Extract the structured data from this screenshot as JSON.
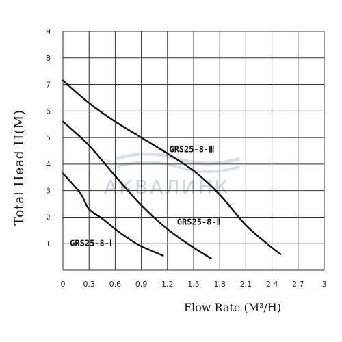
{
  "chart_data": {
    "type": "line",
    "ylabel": "Total Head H(M)",
    "xlabel": "Flow Rate (M³/H)",
    "xlim": [
      0,
      3
    ],
    "ylim": [
      0,
      9
    ],
    "xticks": [
      "0",
      "0.3",
      "0.6",
      "0.9",
      "1.2",
      "1.5",
      "1.8",
      "2.1",
      "2.4",
      "2.7",
      "3"
    ],
    "yticks": [
      "1",
      "2",
      "3",
      "4",
      "5",
      "6",
      "7",
      "8",
      "9"
    ],
    "grid": true,
    "watermark": "АКВАЛИНК",
    "series": [
      {
        "name": "GRS25-8-Ⅲ",
        "x": [
          0,
          0.3,
          0.6,
          0.9,
          1.2,
          1.5,
          1.8,
          2.1,
          2.4,
          2.5
        ],
        "y": [
          7.15,
          6.3,
          5.6,
          5.0,
          4.4,
          3.75,
          2.85,
          1.7,
          0.85,
          0.6
        ]
      },
      {
        "name": "GRS25-8-Ⅱ",
        "x": [
          0,
          0.3,
          0.6,
          0.9,
          1.2,
          1.5,
          1.7
        ],
        "y": [
          5.6,
          4.7,
          3.55,
          2.45,
          1.55,
          0.85,
          0.45
        ]
      },
      {
        "name": "GRS25-8-Ⅰ",
        "x": [
          0,
          0.2,
          0.3,
          0.45,
          0.6,
          0.75,
          0.9,
          1.15
        ],
        "y": [
          3.65,
          2.9,
          2.3,
          1.95,
          1.55,
          1.2,
          0.9,
          0.55
        ]
      }
    ]
  }
}
